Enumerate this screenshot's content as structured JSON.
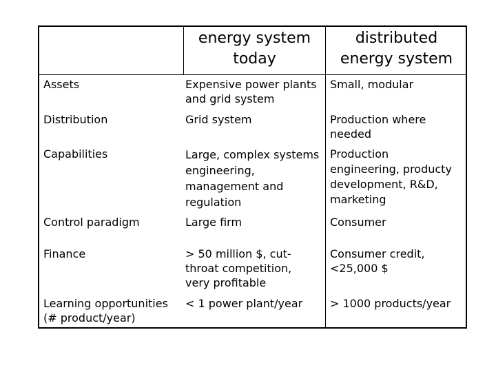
{
  "table": {
    "headers": [
      "",
      "energy system\ntoday",
      "distributed\nenergy system"
    ],
    "rows": [
      {
        "label": "Assets",
        "today": "Expensive power plants\nand grid system",
        "distributed": "Small, modular"
      },
      {
        "label": "Distribution",
        "today": "Grid system",
        "distributed": "Production where\nneeded"
      },
      {
        "label": "Capabilities",
        "today": "Large, complex systems\nengineering,\nmanagement and\nregulation",
        "distributed": "Production\nengineering, producty\ndevelopment, R&D,\nmarketing"
      },
      {
        "label": "Control paradigm",
        "today": "Large firm",
        "distributed": "Consumer"
      },
      {
        "label": "Finance",
        "today": "> 50 million $, cut-\nthroat competition,\nvery profitable",
        "distributed": "Consumer credit,\n<25,000 $"
      },
      {
        "label": "Learning opportunities\n(# product/year)",
        "today": "< 1  power plant/year",
        "distributed": "> 1000 products/year"
      }
    ]
  }
}
